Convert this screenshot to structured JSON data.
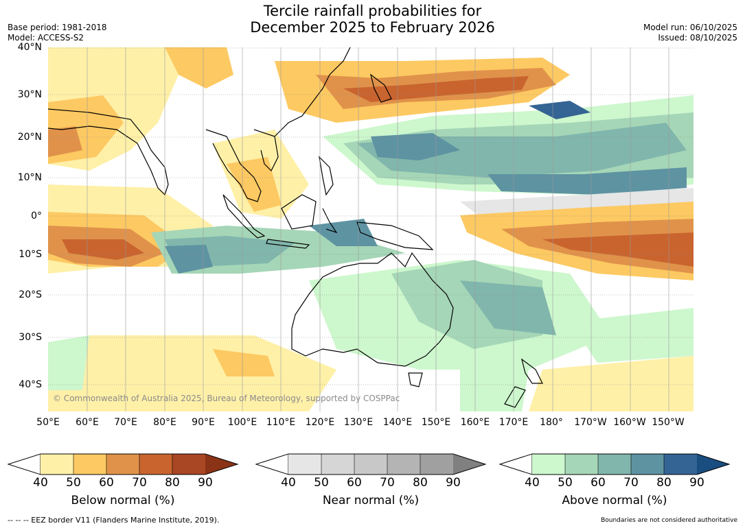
{
  "title": {
    "line1": "Tercile rainfall probabilities for",
    "line2": "December 2025 to February 2026"
  },
  "meta_left": {
    "base_period": "Base period: 1981-2018",
    "model": "Model: ACCESS-S2"
  },
  "meta_right": {
    "model_run": "Model run: 06/10/2025",
    "issued": "Issued: 08/10/2025"
  },
  "lat_labels": [
    "40°N",
    "30°N",
    "20°N",
    "10°N",
    "0°",
    "10°S",
    "20°S",
    "30°S",
    "40°S"
  ],
  "lon_labels": [
    "50°E",
    "60°E",
    "70°E",
    "80°E",
    "90°E",
    "100°E",
    "110°E",
    "120°E",
    "130°E",
    "140°E",
    "150°E",
    "160°E",
    "170°E",
    "180°",
    "170°W",
    "160°W",
    "150°W"
  ],
  "copyright": "© Commonwealth of Australia 2025, Bureau of Meteorology, supported by COSPPac",
  "colorbars": {
    "below": {
      "label": "Below normal (%)",
      "ticks": [
        "40",
        "50",
        "60",
        "70",
        "80",
        "90"
      ],
      "colors": [
        "#fff0a8",
        "#fdc962",
        "#e0924a",
        "#c9642f",
        "#a94624"
      ],
      "extend_color": "#8b3316"
    },
    "near": {
      "label": "Near normal (%)",
      "ticks": [
        "40",
        "50",
        "60",
        "70",
        "80",
        "90"
      ],
      "colors": [
        "#e6e6e6",
        "#d6d6d6",
        "#c8c8c8",
        "#b4b4b4",
        "#a0a0a0"
      ],
      "extend_color": "#808080"
    },
    "above": {
      "label": "Above normal (%)",
      "ticks": [
        "40",
        "50",
        "60",
        "70",
        "80",
        "90"
      ],
      "colors": [
        "#cdf7cd",
        "#a5d6b7",
        "#81b6ac",
        "#5e93a2",
        "#346494"
      ],
      "extend_color": "#1a4d80"
    }
  },
  "footer": {
    "eez": "--  --  -- EEZ border V11 (Flanders Marine Institute, 2019).",
    "disclaimer": "Boundaries are not considered authoritative"
  }
}
